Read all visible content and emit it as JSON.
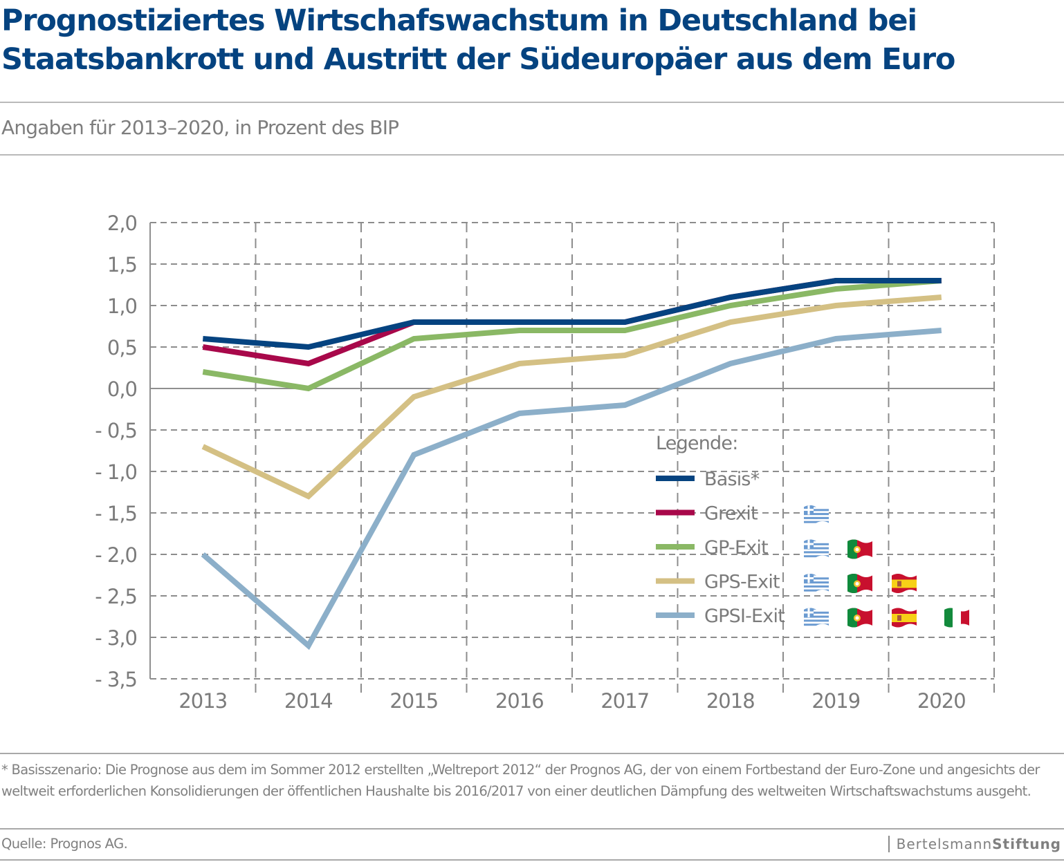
{
  "header": {
    "title_line1": "Prognostiziertes Wirtschafswachstum in Deutschland bei",
    "title_line2": "Staatsbankrott und Austritt der Südeuropäer aus dem Euro",
    "subtitle": "Angaben für 2013–2020, in Prozent des BIP"
  },
  "colors": {
    "title": "#054380",
    "grid": "#8c8c8c",
    "text": "#7b7b7b"
  },
  "chart_data": {
    "type": "line",
    "title": "Prognostiziertes Wirtschafswachstum in Deutschland bei Staatsbankrott und Austritt der Südeuropäer aus dem Euro",
    "subtitle": "Angaben für 2013–2020, in Prozent des BIP",
    "xlabel": "",
    "ylabel": "",
    "x": [
      "2013",
      "2014",
      "2015",
      "2016",
      "2017",
      "2018",
      "2019",
      "2020"
    ],
    "ylim": [
      -3.5,
      2.0
    ],
    "yticks": [
      2.0,
      1.5,
      1.0,
      0.5,
      0.0,
      -0.5,
      -1.0,
      -1.5,
      -2.0,
      -2.5,
      -3.0,
      -3.5
    ],
    "ytick_labels": [
      "2,0",
      "1,5",
      "1,0",
      "0,5",
      "0,0",
      "- 0,5",
      "- 1,0",
      "- 1,5",
      "- 2,0",
      "- 2,5",
      "- 3,0",
      "- 3,5"
    ],
    "grid": true,
    "legend_title": "Legende:",
    "legend_position": "bottom-right inside plot",
    "series": [
      {
        "name": "Basis*",
        "color": "#054380",
        "values": [
          0.6,
          0.5,
          0.8,
          0.8,
          0.8,
          1.1,
          1.3,
          1.3
        ],
        "flags": []
      },
      {
        "name": "Grexit",
        "color": "#a8084a",
        "values": [
          0.5,
          0.3,
          0.8,
          0.8,
          0.8,
          1.1,
          1.3,
          1.3
        ],
        "flags": [
          "greece"
        ]
      },
      {
        "name": "GP-Exit",
        "color": "#8ab865",
        "values": [
          0.2,
          0.0,
          0.6,
          0.7,
          0.7,
          1.0,
          1.2,
          1.3
        ],
        "flags": [
          "greece",
          "portugal"
        ]
      },
      {
        "name": "GPS-Exit",
        "color": "#d4c084",
        "values": [
          -0.7,
          -1.3,
          -0.1,
          0.3,
          0.4,
          0.8,
          1.0,
          1.1
        ],
        "flags": [
          "greece",
          "portugal",
          "spain"
        ]
      },
      {
        "name": "GPSI-Exit",
        "color": "#8cafc9",
        "values": [
          -2.0,
          -3.1,
          -0.8,
          -0.3,
          -0.2,
          0.3,
          0.6,
          0.7
        ],
        "flags": [
          "greece",
          "portugal",
          "spain",
          "italy"
        ]
      }
    ]
  },
  "footer": {
    "footnote": "* Basisszenario: Die Prognose aus dem im Sommer 2012 erstellten „Weltreport 2012“ der Prognos AG, der von einem Fortbestand der Euro-Zone und angesichts der weltweit erforderlichen Konsolidierungen der öffentlichen Haushalte bis 2016/2017 von einer deutlichen Dämpfung des weltweiten Wirtschaftswachstums ausgeht.",
    "source": "Quelle: Prognos AG.",
    "brand_regular": "Bertelsmann",
    "brand_bold": "Stiftung"
  }
}
